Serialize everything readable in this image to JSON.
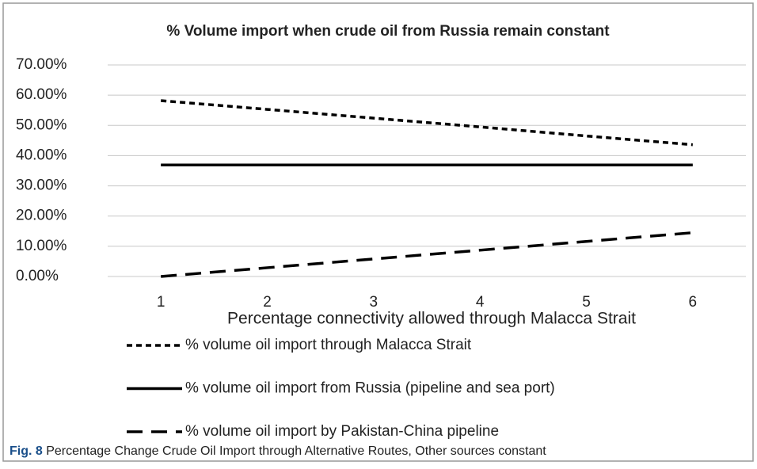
{
  "chart_data": {
    "type": "line",
    "title": "% Volume import when crude oil from Russia remain constant",
    "x_label": "Percentage connectivity allowed through Malacca Strait",
    "categories": [
      "1",
      "2",
      "3",
      "4",
      "5",
      "6"
    ],
    "series": [
      {
        "name": "% volume oil import through Malacca Strait",
        "color": "#000000",
        "dash": "7,5",
        "values": [
          58.2,
          55.3,
          52.4,
          49.5,
          46.5,
          43.6
        ]
      },
      {
        "name": "% volume oil import from Russia (pipeline and sea port)",
        "color": "#000000",
        "dash": "none",
        "values": [
          36.9,
          36.9,
          36.9,
          36.9,
          36.9,
          36.9
        ]
      },
      {
        "name": "% volume oil import by Pakistan-China pipeline",
        "color": "#000000",
        "dash": "20,11",
        "values": [
          0,
          2.9,
          5.8,
          8.7,
          11.6,
          14.5
        ]
      }
    ],
    "ylim": [
      0,
      70
    ],
    "yticks": [
      {
        "value": 0,
        "label": "0.00%"
      },
      {
        "value": 10,
        "label": "10.00%"
      },
      {
        "value": 20,
        "label": "20.00%"
      },
      {
        "value": 30,
        "label": "30.00%"
      },
      {
        "value": 40,
        "label": "40.00%"
      },
      {
        "value": 50,
        "label": "50.00%"
      },
      {
        "value": 60,
        "label": "60.00%"
      },
      {
        "value": 70,
        "label": "70.00%"
      }
    ],
    "grid": true,
    "legend": "bottom"
  },
  "caption": {
    "label": "Fig. 8",
    "text": "Percentage Change Crude Oil Import through Alternative Routes, Other sources constant"
  }
}
